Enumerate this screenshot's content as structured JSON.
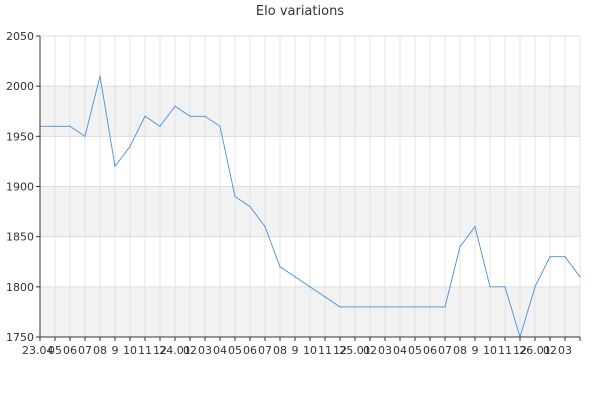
{
  "chart_data": {
    "type": "line",
    "title": "Elo variations",
    "xlabel": "",
    "ylabel": "",
    "ylim": [
      1750,
      2050
    ],
    "yticks": [
      1750,
      1800,
      1850,
      1900,
      1950,
      2000,
      2050
    ],
    "x_tick_labels": [
      "23.04",
      "05",
      "06",
      "07",
      "08",
      "9",
      "10",
      "11",
      "12",
      "24.01",
      "02",
      "03",
      "04",
      "05",
      "06",
      "07",
      "08",
      "9",
      "10",
      "11",
      "12",
      "25.01",
      "02",
      "03",
      "04",
      "05",
      "06",
      "07",
      "08",
      "9",
      "10",
      "11",
      "12",
      "26.01",
      "02",
      "03"
    ],
    "grid": true,
    "alternate_bands": true,
    "series_color": "#4a90d9",
    "band_color": "#f2f2f2",
    "series": [
      {
        "values": [
          1960,
          1960,
          1960,
          1950,
          2010,
          1920,
          1940,
          1970,
          1960,
          1980,
          1970,
          1970,
          1960,
          1890,
          1880,
          1860,
          1820,
          1810,
          1800,
          1790,
          1780,
          1780,
          1780,
          1780,
          1780,
          1780,
          1780,
          1780,
          1840,
          1860,
          1800,
          1800,
          1750,
          1800,
          1830,
          1830,
          1810
        ]
      }
    ]
  }
}
